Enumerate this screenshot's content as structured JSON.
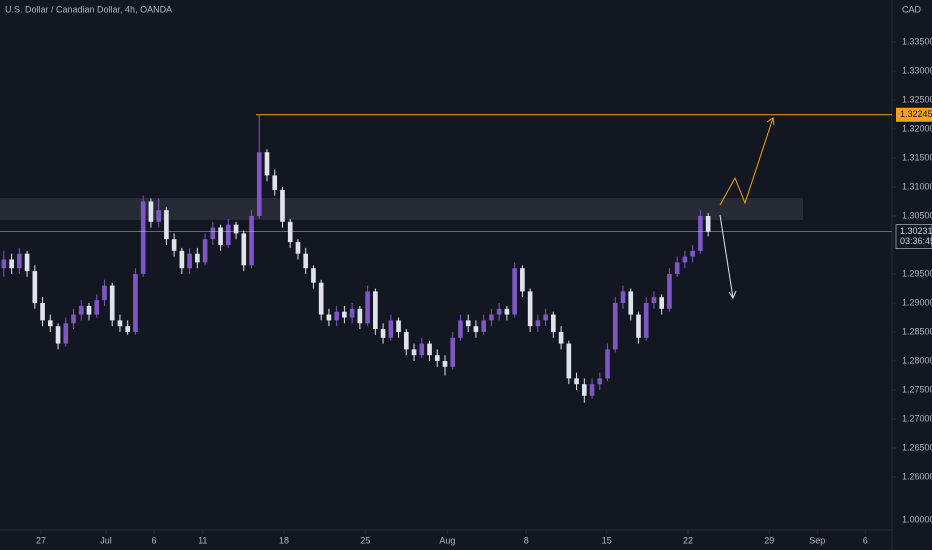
{
  "chart_data": {
    "type": "candlestick",
    "title": "U.S. Dollar / Canadian Dollar, 4h, OANDA",
    "y_axis_label": "CAD",
    "scale_label": "1.00000",
    "up_color": "#7e57c2",
    "down_color": "#e0e3eb",
    "opens": [
      1.296,
      1.2975,
      1.296,
      1.2985,
      1.2955,
      1.29,
      1.287,
      1.286,
      1.283,
      1.2865,
      1.288,
      1.2895,
      1.288,
      1.2905,
      1.293,
      1.287,
      1.286,
      1.285,
      1.295,
      1.3075,
      1.304,
      1.306,
      1.301,
      1.299,
      1.296,
      1.2985,
      1.297,
      1.301,
      1.303,
      1.3,
      1.3035,
      1.302,
      1.2965,
      1.305,
      1.316,
      1.312,
      1.3095,
      1.304,
      1.3005,
      1.2985,
      1.296,
      1.2935,
      1.288,
      1.287,
      1.2885,
      1.2875,
      1.289,
      1.2865,
      1.292,
      1.2855,
      1.284,
      1.287,
      1.285,
      1.282,
      1.281,
      1.283,
      1.281,
      1.28,
      1.279,
      1.284,
      1.287,
      1.286,
      1.285,
      1.287,
      1.288,
      1.289,
      1.288,
      1.296,
      1.292,
      1.286,
      1.287,
      1.288,
      1.285,
      1.283,
      1.277,
      1.276,
      1.274,
      1.276,
      1.277,
      1.282,
      1.29,
      1.292,
      1.288,
      1.284,
      1.29,
      1.291,
      1.289,
      1.295,
      1.297,
      1.298,
      1.299,
      1.305
    ],
    "highs": [
      1.299,
      1.2985,
      1.2995,
      1.299,
      1.2965,
      1.291,
      1.288,
      1.2865,
      1.2875,
      1.289,
      1.2905,
      1.29,
      1.2915,
      1.294,
      1.2935,
      1.288,
      1.287,
      1.296,
      1.3085,
      1.308,
      1.308,
      1.3065,
      1.302,
      1.2995,
      1.2995,
      1.2995,
      1.302,
      1.304,
      1.3035,
      1.3045,
      1.304,
      1.3025,
      1.306,
      1.32245,
      1.3165,
      1.313,
      1.31,
      1.3045,
      1.301,
      1.2995,
      1.2965,
      1.294,
      1.289,
      1.2895,
      1.2895,
      1.29,
      1.2895,
      1.293,
      1.2925,
      1.2865,
      1.288,
      1.2875,
      1.2855,
      1.283,
      1.284,
      1.2835,
      1.282,
      1.281,
      1.285,
      1.288,
      1.288,
      1.287,
      1.288,
      1.289,
      1.29,
      1.2895,
      1.297,
      1.2965,
      1.2925,
      1.288,
      1.289,
      1.2885,
      1.286,
      1.2835,
      1.278,
      1.277,
      1.277,
      1.278,
      1.283,
      1.291,
      1.293,
      1.2925,
      1.2885,
      1.291,
      1.292,
      1.2915,
      1.296,
      1.298,
      1.299,
      1.3,
      1.306,
      1.3055
    ],
    "lows": [
      1.2945,
      1.295,
      1.295,
      1.2945,
      1.289,
      1.286,
      1.285,
      1.282,
      1.2825,
      1.2855,
      1.287,
      1.287,
      1.2875,
      1.2895,
      1.286,
      1.285,
      1.2845,
      1.2845,
      1.2945,
      1.303,
      1.303,
      1.3,
      1.298,
      1.295,
      1.295,
      1.296,
      1.2965,
      1.3,
      1.299,
      1.2995,
      1.301,
      1.2955,
      1.296,
      1.3045,
      1.311,
      1.3085,
      1.303,
      1.2995,
      1.2975,
      1.295,
      1.2925,
      1.287,
      1.286,
      1.286,
      1.2865,
      1.2865,
      1.2855,
      1.286,
      1.2845,
      1.283,
      1.2835,
      1.284,
      1.281,
      1.28,
      1.2805,
      1.28,
      1.279,
      1.2775,
      1.2785,
      1.2835,
      1.285,
      1.284,
      1.2845,
      1.286,
      1.287,
      1.287,
      1.2875,
      1.291,
      1.285,
      1.285,
      1.286,
      1.284,
      1.282,
      1.276,
      1.275,
      1.2728,
      1.2735,
      1.275,
      1.2765,
      1.2815,
      1.289,
      1.287,
      1.283,
      1.2835,
      1.289,
      1.288,
      1.2885,
      1.2945,
      1.296,
      1.297,
      1.2985,
      1.3015
    ],
    "closes": [
      1.2975,
      1.296,
      1.2985,
      1.2955,
      1.29,
      1.287,
      1.286,
      1.283,
      1.2865,
      1.288,
      1.2895,
      1.288,
      1.2905,
      1.293,
      1.287,
      1.286,
      1.285,
      1.295,
      1.3075,
      1.304,
      1.306,
      1.301,
      1.299,
      1.296,
      1.2985,
      1.297,
      1.301,
      1.303,
      1.3,
      1.3035,
      1.302,
      1.2965,
      1.305,
      1.316,
      1.312,
      1.3095,
      1.304,
      1.3005,
      1.2985,
      1.296,
      1.2935,
      1.288,
      1.287,
      1.2885,
      1.2875,
      1.289,
      1.2865,
      1.292,
      1.2855,
      1.284,
      1.287,
      1.285,
      1.282,
      1.281,
      1.283,
      1.281,
      1.28,
      1.279,
      1.284,
      1.287,
      1.286,
      1.285,
      1.287,
      1.288,
      1.289,
      1.288,
      1.296,
      1.292,
      1.286,
      1.287,
      1.288,
      1.285,
      1.283,
      1.277,
      1.276,
      1.274,
      1.276,
      1.277,
      1.282,
      1.29,
      1.292,
      1.288,
      1.284,
      1.29,
      1.291,
      1.289,
      1.295,
      1.297,
      1.298,
      1.299,
      1.305,
      1.3023
    ],
    "xlim": [
      -0.5,
      114.5
    ],
    "xticks": [
      {
        "value": 4.8,
        "label": "27"
      },
      {
        "value": 13.2,
        "label": "Jul"
      },
      {
        "value": 19.4,
        "label": "6"
      },
      {
        "value": 25.7,
        "label": "11"
      },
      {
        "value": 36.2,
        "label": "18"
      },
      {
        "value": 46.7,
        "label": "25"
      },
      {
        "value": 57.3,
        "label": "Aug"
      },
      {
        "value": 67.5,
        "label": "8"
      },
      {
        "value": 77.9,
        "label": "15"
      },
      {
        "value": 88.4,
        "label": "22"
      },
      {
        "value": 98.9,
        "label": "29"
      },
      {
        "value": 105.1,
        "label": "Sep"
      },
      {
        "value": 111.3,
        "label": "6"
      }
    ],
    "ylim": [
      1.25086,
      1.34224
    ],
    "yticks": [
      {
        "value": 1.335,
        "label": "1.33500"
      },
      {
        "value": 1.33,
        "label": "1.33000"
      },
      {
        "value": 1.325,
        "label": "1.32500"
      },
      {
        "value": 1.32,
        "label": "1.32000"
      },
      {
        "value": 1.315,
        "label": "1.31500"
      },
      {
        "value": 1.31,
        "label": "1.31000"
      },
      {
        "value": 1.305,
        "label": "1.30500"
      },
      {
        "value": 1.295,
        "label": "1.29500"
      },
      {
        "value": 1.29,
        "label": "1.29000"
      },
      {
        "value": 1.285,
        "label": "1.28500"
      },
      {
        "value": 1.28,
        "label": "1.28000"
      },
      {
        "value": 1.275,
        "label": "1.27500"
      },
      {
        "value": 1.27,
        "label": "1.27000"
      },
      {
        "value": 1.265,
        "label": "1.26500"
      },
      {
        "value": 1.26,
        "label": "1.26000"
      }
    ],
    "zone": [
      1.3081,
      1.3043
    ],
    "resistance": {
      "value": 1.32245,
      "label": "1.32245",
      "color": "#f7a21b"
    },
    "last_price": {
      "value": 1.30231,
      "label": "1.30231",
      "countdown": "03:36:45",
      "color": "#d1d4dc"
    }
  }
}
